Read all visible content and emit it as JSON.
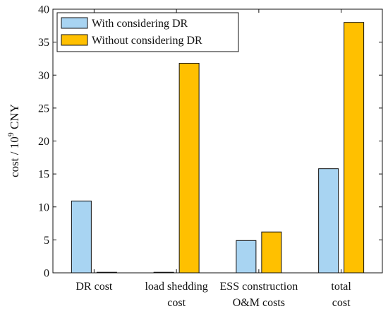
{
  "chart_data": {
    "type": "bar",
    "categories": [
      [
        "DR cost"
      ],
      [
        "load shedding",
        "cost"
      ],
      [
        "ESS construction",
        "O&M costs"
      ],
      [
        "total",
        "cost"
      ]
    ],
    "series": [
      {
        "name": "With considering DR",
        "color": "#a8d4f2",
        "values": [
          10.9,
          0,
          4.9,
          15.8
        ]
      },
      {
        "name": "Without considering DR",
        "color": "#ffc000",
        "values": [
          0,
          31.8,
          6.2,
          38
        ]
      }
    ],
    "ylabel": {
      "prefix": "cost / 10",
      "superscript": "9",
      "suffix": " CNY"
    },
    "ylim": [
      0,
      40
    ],
    "yticks": [
      0,
      5,
      10,
      15,
      20,
      25,
      30,
      35,
      40
    ],
    "grid": false,
    "legend_position": "top-left"
  }
}
